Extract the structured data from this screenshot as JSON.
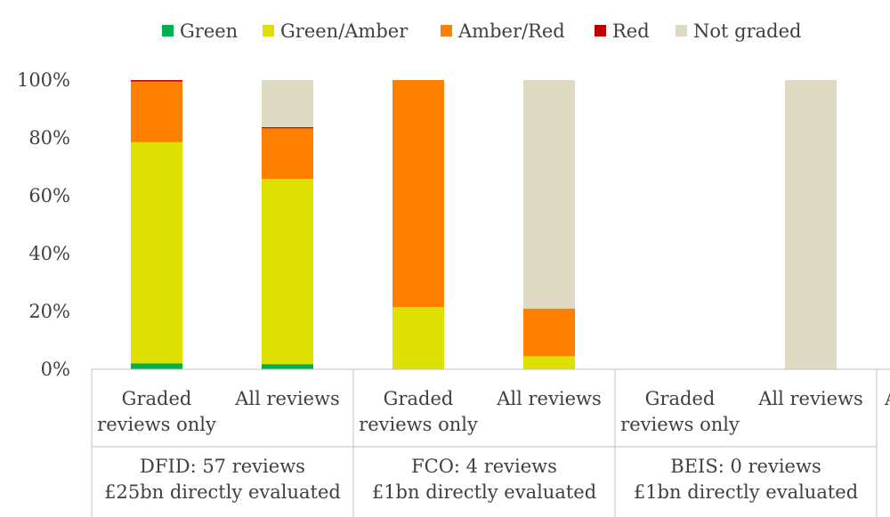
{
  "chart_data": {
    "type": "bar",
    "stacked": true,
    "percent": true,
    "ylim": [
      0,
      100
    ],
    "yticks": [
      "0%",
      "20%",
      "40%",
      "60%",
      "80%",
      "100%"
    ],
    "legend_position": "top",
    "series": [
      {
        "name": "Green",
        "color": "#00b050"
      },
      {
        "name": "Green/Amber",
        "color": "#dde000"
      },
      {
        "name": "Amber/Red",
        "color": "#ff8000"
      },
      {
        "name": "Red",
        "color": "#c00000"
      },
      {
        "name": "Not graded",
        "color": "#ddd9c3"
      }
    ],
    "groups": [
      {
        "line1": "DFID: 57 reviews",
        "line2": "£25bn directly evaluated",
        "bars": [
          {
            "category_line1": "Graded",
            "category_line2": "reviews only",
            "values": [
              2,
              76.5,
              21,
              0.5,
              0
            ]
          },
          {
            "category_line1": "All reviews",
            "category_line2": "",
            "values": [
              1.8,
              64,
              17.5,
              0.4,
              16.3
            ]
          }
        ]
      },
      {
        "line1": "FCO: 4 reviews",
        "line2": "£1bn directly evaluated",
        "bars": [
          {
            "category_line1": "Graded",
            "category_line2": "reviews only",
            "values": [
              0,
              21.5,
              78.5,
              0,
              0
            ]
          },
          {
            "category_line1": "All reviews",
            "category_line2": "",
            "values": [
              0,
              4.5,
              16.5,
              0,
              79
            ]
          }
        ]
      },
      {
        "line1": "BEIS: 0 reviews",
        "line2": "£1bn directly evaluated",
        "bars": [
          {
            "category_line1": "Graded",
            "category_line2": "reviews only",
            "values": [
              0,
              0,
              0,
              0,
              0
            ]
          },
          {
            "category_line1": "All reviews",
            "category_line2": "",
            "values": [
              0,
              0,
              0,
              0,
              100
            ]
          }
        ]
      }
    ],
    "partial_label_at_right_edge": "A"
  }
}
